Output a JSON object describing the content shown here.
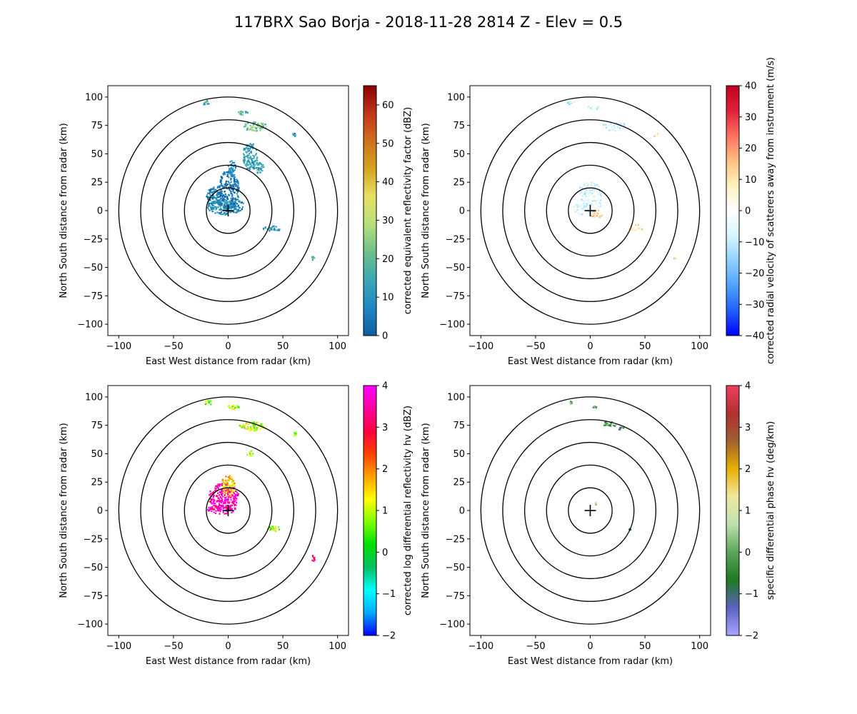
{
  "figure": {
    "title": "117BRX Sao Borja - 2018-11-28 2814 Z -  Elev = 0.5"
  },
  "chart_data": [
    {
      "type": "radar-ppi",
      "id": "reflectivity",
      "xlabel": "East West distance from radar (km)",
      "ylabel": "North South distance from radar (km)",
      "xlim": [
        -110,
        110
      ],
      "ylim": [
        -110,
        110
      ],
      "xticks": [
        -100,
        -50,
        0,
        50,
        100
      ],
      "yticks": [
        -100,
        -75,
        -50,
        -25,
        0,
        25,
        50,
        75,
        100
      ],
      "range_rings_km": [
        20,
        40,
        60,
        80,
        100
      ],
      "colorbar": {
        "label": "corrected equivalent reflectivity factor (dBZ)",
        "vmin": 0,
        "vmax": 65,
        "ticks": [
          0,
          10,
          20,
          30,
          40,
          50,
          60
        ],
        "colors": [
          "#0d5e9e",
          "#1e88c7",
          "#3aa8b5",
          "#6cc08a",
          "#b5e07a",
          "#e8e064",
          "#d4a520",
          "#d0701c",
          "#c0361a",
          "#8b0000"
        ]
      },
      "echoes": [
        {
          "x": 0,
          "y": 18,
          "rx": 10,
          "ry": 17,
          "value": 5
        },
        {
          "x": -12,
          "y": 12,
          "rx": 8,
          "ry": 9,
          "value": 7
        },
        {
          "x": -6,
          "y": 3,
          "rx": 13,
          "ry": 7,
          "value": 9
        },
        {
          "x": 6,
          "y": 4,
          "rx": 9,
          "ry": 6,
          "value": 6
        },
        {
          "x": 3,
          "y": 38,
          "rx": 4,
          "ry": 6,
          "value": 8
        },
        {
          "x": 20,
          "y": 48,
          "rx": 7,
          "ry": 12,
          "value": 13
        },
        {
          "x": 28,
          "y": 38,
          "rx": 5,
          "ry": 5,
          "value": 12
        },
        {
          "x": 25,
          "y": 74,
          "rx": 11,
          "ry": 4,
          "value": 22
        },
        {
          "x": 13,
          "y": 86,
          "rx": 5,
          "ry": 2.5,
          "value": 18
        },
        {
          "x": -20,
          "y": 95,
          "rx": 4,
          "ry": 2,
          "value": 15
        },
        {
          "x": 40,
          "y": -16,
          "rx": 8,
          "ry": 2.5,
          "value": 10
        },
        {
          "x": 78,
          "y": -42,
          "rx": 1.5,
          "ry": 3,
          "value": 14
        },
        {
          "x": 60,
          "y": 67,
          "rx": 2,
          "ry": 2,
          "value": 9
        }
      ]
    },
    {
      "type": "radar-ppi",
      "id": "velocity",
      "xlabel": "East West distance from radar (km)",
      "ylabel": "North South distance from radar (km)",
      "xlim": [
        -110,
        110
      ],
      "ylim": [
        -110,
        110
      ],
      "xticks": [
        -100,
        -50,
        0,
        50,
        100
      ],
      "yticks": [
        -100,
        -75,
        -50,
        -25,
        0,
        25,
        50,
        75,
        100
      ],
      "range_rings_km": [
        20,
        40,
        60,
        80,
        100
      ],
      "colorbar": {
        "label": "corrected radial velocity of scatterers away from instrument (m/s)",
        "vmin": -40,
        "vmax": 40,
        "ticks": [
          -40,
          -30,
          -20,
          -10,
          0,
          10,
          20,
          30,
          40
        ],
        "colors": [
          "#0000ff",
          "#2060ff",
          "#4ea3ff",
          "#8fd0ff",
          "#d8f6ff",
          "#ffffff",
          "#fff2c0",
          "#ffc080",
          "#ff7060",
          "#e0203a",
          "#c00020"
        ]
      },
      "echoes": [
        {
          "x": 0,
          "y": 12,
          "rx": 12,
          "ry": 14,
          "value": -6
        },
        {
          "x": -8,
          "y": 2,
          "rx": 8,
          "ry": 6,
          "value": -5
        },
        {
          "x": 5,
          "y": -3,
          "rx": 6,
          "ry": 4,
          "value": 12
        },
        {
          "x": 22,
          "y": 74,
          "rx": 12,
          "ry": 4,
          "value": -7
        },
        {
          "x": -18,
          "y": 95,
          "rx": 4,
          "ry": 2,
          "value": -9
        },
        {
          "x": 4,
          "y": 91,
          "rx": 6,
          "ry": 2,
          "value": -6
        },
        {
          "x": 42,
          "y": -15,
          "rx": 7,
          "ry": 2.5,
          "value": 8
        },
        {
          "x": 78,
          "y": -42,
          "rx": 1.5,
          "ry": 3,
          "value": 10
        },
        {
          "x": 60,
          "y": 67,
          "rx": 2.5,
          "ry": 2,
          "value": 9
        }
      ]
    },
    {
      "type": "radar-ppi",
      "id": "zdr",
      "xlabel": "East West distance from radar (km)",
      "ylabel": "North South distance from radar (km)",
      "xlim": [
        -110,
        110
      ],
      "ylim": [
        -110,
        110
      ],
      "xticks": [
        -100,
        -50,
        0,
        50,
        100
      ],
      "yticks": [
        -100,
        -75,
        -50,
        -25,
        0,
        25,
        50,
        75,
        100
      ],
      "range_rings_km": [
        20,
        40,
        60,
        80,
        100
      ],
      "colorbar": {
        "label": "corrected log differential reflectivity hv (dBZ)",
        "vmin": -2,
        "vmax": 4,
        "ticks": [
          -2,
          -1,
          0,
          1,
          2,
          3,
          4
        ],
        "colors": [
          "#0000ff",
          "#00aaff",
          "#00ffff",
          "#00c060",
          "#00e000",
          "#80ff00",
          "#ffff00",
          "#ffa000",
          "#ff4000",
          "#ff0040",
          "#ff00a0",
          "#ff00ff"
        ]
      },
      "echoes": [
        {
          "x": -4,
          "y": 12,
          "rx": 14,
          "ry": 12,
          "value": 3.7
        },
        {
          "x": 0,
          "y": 22,
          "rx": 6,
          "ry": 10,
          "value": 1.5
        },
        {
          "x": -6,
          "y": 1,
          "rx": 13,
          "ry": 4,
          "value": 3.6
        },
        {
          "x": 22,
          "y": 74,
          "rx": 12,
          "ry": 4,
          "value": 1.0
        },
        {
          "x": -18,
          "y": 95,
          "rx": 4,
          "ry": 2,
          "value": 0.6
        },
        {
          "x": 4,
          "y": 91,
          "rx": 6,
          "ry": 2,
          "value": 0.8
        },
        {
          "x": 20,
          "y": 50,
          "rx": 3,
          "ry": 3,
          "value": 1.2
        },
        {
          "x": 42,
          "y": -16,
          "rx": 7,
          "ry": 2.5,
          "value": 0.9
        },
        {
          "x": 78,
          "y": -42,
          "rx": 1.5,
          "ry": 3,
          "value": 3.2
        },
        {
          "x": 62,
          "y": 67,
          "rx": 2,
          "ry": 2,
          "value": 0.7
        }
      ]
    },
    {
      "type": "radar-ppi",
      "id": "kdp",
      "xlabel": "East West distance from radar (km)",
      "ylabel": "North South distance from radar (km)",
      "xlim": [
        -110,
        110
      ],
      "ylim": [
        -110,
        110
      ],
      "xticks": [
        -100,
        -50,
        0,
        50,
        100
      ],
      "yticks": [
        -100,
        -75,
        -50,
        -25,
        0,
        25,
        50,
        75,
        100
      ],
      "range_rings_km": [
        20,
        40,
        60,
        80,
        100
      ],
      "colorbar": {
        "label": "specific differential phase hv (deg/km)",
        "vmin": -2,
        "vmax": 4,
        "ticks": [
          -2,
          -1,
          0,
          1,
          2,
          3,
          4
        ],
        "colors": [
          "#a9a4ff",
          "#5a62c0",
          "#1f7a1f",
          "#5aa65a",
          "#bfe0b0",
          "#f0e8a0",
          "#e8b000",
          "#a06030",
          "#b03030",
          "#f04060"
        ]
      },
      "echoes": [
        {
          "x": 18,
          "y": 76,
          "rx": 7,
          "ry": 2.5,
          "value": -0.2
        },
        {
          "x": 28,
          "y": 72,
          "rx": 3,
          "ry": 1.2,
          "value": -1.0
        },
        {
          "x": 4,
          "y": 91,
          "rx": 2,
          "ry": 1.2,
          "value": 0.1
        },
        {
          "x": -18,
          "y": 95,
          "rx": 2,
          "ry": 1.2,
          "value": 0.2
        },
        {
          "x": 36,
          "y": -17,
          "rx": 1.2,
          "ry": 1.2,
          "value": -0.3
        },
        {
          "x": 5,
          "y": 6,
          "rx": 0.6,
          "ry": 1.5,
          "value": 0.4
        }
      ]
    }
  ]
}
